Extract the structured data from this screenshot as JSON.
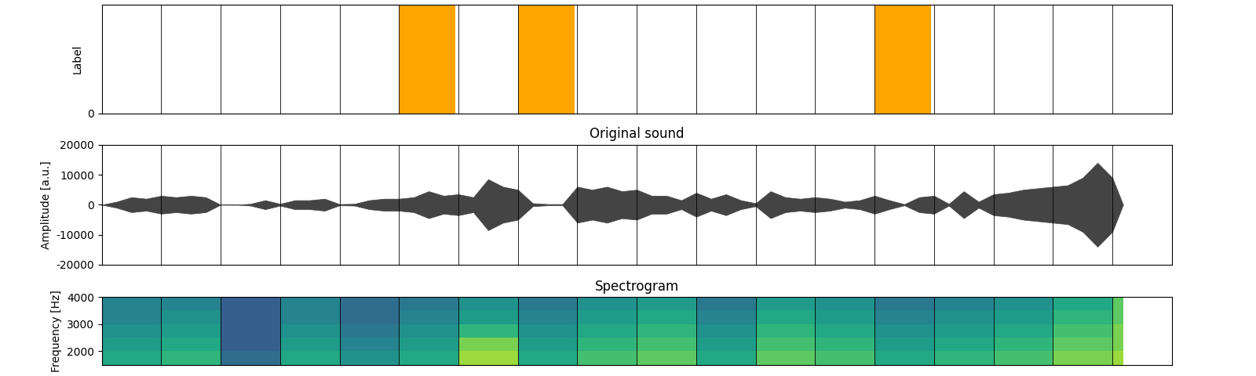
{
  "chart_data": [
    {
      "type": "bar",
      "ylabel": "Label",
      "x": [
        0,
        1,
        2,
        3,
        4,
        5,
        6,
        7,
        8,
        9,
        10,
        11,
        12,
        13,
        14,
        15,
        16,
        17
      ],
      "values": [
        0,
        0,
        0,
        0,
        0,
        1,
        0,
        1,
        0,
        0,
        0,
        0,
        0,
        1,
        0,
        0,
        0,
        0
      ],
      "color": "#ffa500",
      "boundaries": [
        1,
        2,
        3,
        4,
        5,
        6,
        7,
        8,
        9,
        10,
        11,
        12,
        13,
        14,
        15,
        16,
        17
      ],
      "xlim": [
        0,
        18
      ],
      "ylim": [
        0,
        1
      ],
      "yticks": [
        0
      ],
      "tick_labels": "y"
    },
    {
      "type": "area",
      "title": "Original sound",
      "ylabel": "Amplitude [a.u.]",
      "x": [
        0,
        0.25,
        0.5,
        0.75,
        1.0,
        1.25,
        1.5,
        1.75,
        2.0,
        2.25,
        2.5,
        2.75,
        3.0,
        3.25,
        3.5,
        3.75,
        4.0,
        4.25,
        4.5,
        4.75,
        5.0,
        5.25,
        5.5,
        5.75,
        6.0,
        6.25,
        6.5,
        6.75,
        7.0,
        7.25,
        7.5,
        7.75,
        8.0,
        8.25,
        8.5,
        8.75,
        9.0,
        9.25,
        9.5,
        9.75,
        10.0,
        10.25,
        10.5,
        10.75,
        11.0,
        11.25,
        11.5,
        11.75,
        12.0,
        12.25,
        12.5,
        12.75,
        13.0,
        13.25,
        13.5,
        13.75,
        14.0,
        14.25,
        14.5,
        14.75,
        15.0,
        15.25,
        15.5,
        15.75,
        16.0,
        16.25,
        16.5,
        16.75,
        17.0,
        17.18
      ],
      "values": [
        0,
        1000,
        2500,
        2000,
        3000,
        2500,
        3000,
        2500,
        0,
        0,
        300,
        1500,
        300,
        1500,
        1500,
        2000,
        200,
        300,
        1500,
        2000,
        2000,
        2500,
        4500,
        3000,
        3500,
        2500,
        8500,
        6000,
        5000,
        500,
        200,
        200,
        6000,
        5000,
        6000,
        4500,
        5000,
        3000,
        3000,
        1500,
        4000,
        2000,
        3500,
        1500,
        500,
        4500,
        2500,
        2000,
        2500,
        2000,
        1000,
        1500,
        3000,
        1500,
        200,
        2500,
        3000,
        300,
        4500,
        1000,
        3500,
        4000,
        5000,
        5500,
        6000,
        6500,
        9000,
        14000,
        9000,
        0
      ],
      "color": "#444444",
      "boundaries": [
        1,
        2,
        3,
        4,
        5,
        6,
        7,
        8,
        9,
        10,
        11,
        12,
        13,
        14,
        15,
        16,
        17
      ],
      "xlim": [
        0,
        18
      ],
      "ylim": [
        -20000,
        20000
      ],
      "yticks": [
        -20000,
        -10000,
        0,
        10000,
        20000
      ],
      "tick_labels": "y"
    },
    {
      "type": "heatmap",
      "title": "Spectrogram",
      "ylabel": "Frequency [Hz]",
      "time_edges": [
        0,
        1,
        2,
        3,
        4,
        5,
        6,
        7,
        8,
        9,
        10,
        11,
        12,
        13,
        14,
        15,
        16,
        17,
        17.18
      ],
      "freq_edges": [
        1500,
        2000,
        2500,
        3000,
        3500,
        4000
      ],
      "cells": [
        [
          0.6,
          0.65,
          0.35,
          0.6,
          0.5,
          0.6,
          0.85,
          0.6,
          0.7,
          0.75,
          0.6,
          0.75,
          0.7,
          0.6,
          0.65,
          0.7,
          0.8,
          0.85
        ],
        [
          0.55,
          0.6,
          0.3,
          0.55,
          0.45,
          0.55,
          0.8,
          0.55,
          0.65,
          0.7,
          0.55,
          0.7,
          0.65,
          0.55,
          0.6,
          0.65,
          0.75,
          0.8
        ],
        [
          0.5,
          0.55,
          0.3,
          0.5,
          0.4,
          0.5,
          0.65,
          0.5,
          0.6,
          0.65,
          0.5,
          0.65,
          0.6,
          0.5,
          0.55,
          0.6,
          0.7,
          0.8
        ],
        [
          0.45,
          0.5,
          0.3,
          0.45,
          0.35,
          0.45,
          0.55,
          0.45,
          0.55,
          0.6,
          0.45,
          0.6,
          0.55,
          0.45,
          0.5,
          0.55,
          0.65,
          0.75
        ],
        [
          0.45,
          0.45,
          0.3,
          0.45,
          0.35,
          0.4,
          0.5,
          0.4,
          0.5,
          0.55,
          0.4,
          0.55,
          0.5,
          0.4,
          0.45,
          0.5,
          0.6,
          0.75
        ]
      ],
      "color_range": [
        0,
        1
      ],
      "boundaries": [
        1,
        2,
        3,
        4,
        5,
        6,
        7,
        8,
        9,
        10,
        11,
        12,
        13,
        14,
        15,
        16,
        17
      ],
      "xlim": [
        0,
        18
      ],
      "ylim": [
        1500,
        4000
      ],
      "yticks": [
        2000,
        3000,
        4000
      ],
      "tick_labels": "y"
    }
  ]
}
